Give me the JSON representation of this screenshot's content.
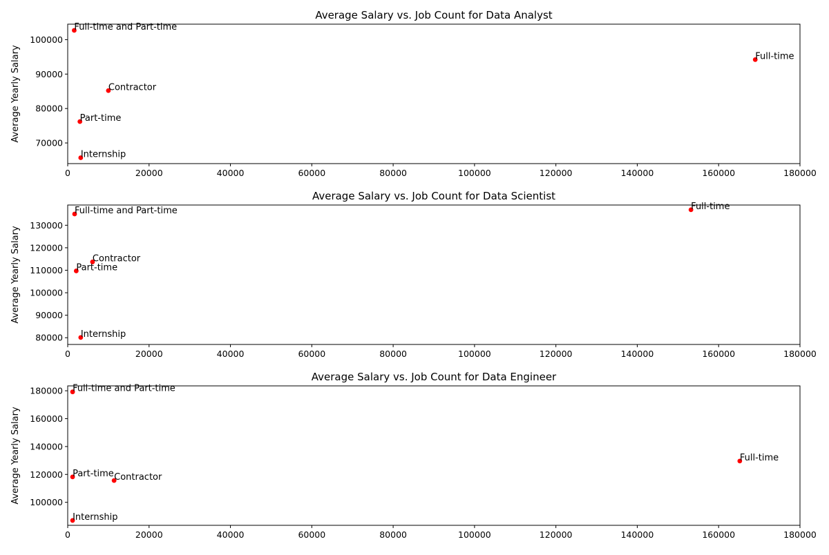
{
  "chart_data": [
    {
      "type": "scatter",
      "title": "Average Salary vs. Job Count for Data Analyst",
      "xlabel": "",
      "ylabel": "Average Yearly Salary",
      "xlim": [
        0,
        180000
      ],
      "ylim": [
        64000,
        104500
      ],
      "xticks": [
        0,
        20000,
        40000,
        60000,
        80000,
        100000,
        120000,
        140000,
        160000,
        180000
      ],
      "yticks": [
        70000,
        80000,
        90000,
        100000
      ],
      "grid": false,
      "marker_color": "#ff0000",
      "points": [
        {
          "label": "Full-time and Part-time",
          "x": 1600,
          "y": 102700
        },
        {
          "label": "Full-time",
          "x": 169000,
          "y": 94200
        },
        {
          "label": "Contractor",
          "x": 10000,
          "y": 85200
        },
        {
          "label": "Part-time",
          "x": 3000,
          "y": 76200
        },
        {
          "label": "Internship",
          "x": 3200,
          "y": 65700
        }
      ]
    },
    {
      "type": "scatter",
      "title": "Average Salary vs. Job Count for Data Scientist",
      "xlabel": "",
      "ylabel": "Average Yearly Salary",
      "xlim": [
        0,
        180000
      ],
      "ylim": [
        77000,
        139000
      ],
      "xticks": [
        0,
        20000,
        40000,
        60000,
        80000,
        100000,
        120000,
        140000,
        160000,
        180000
      ],
      "yticks": [
        80000,
        90000,
        100000,
        110000,
        120000,
        130000
      ],
      "grid": false,
      "marker_color": "#ff0000",
      "points": [
        {
          "label": "Full-time and Part-time",
          "x": 1700,
          "y": 135000
        },
        {
          "label": "Full-time",
          "x": 153200,
          "y": 136900
        },
        {
          "label": "Contractor",
          "x": 6100,
          "y": 113700
        },
        {
          "label": "Part-time",
          "x": 2100,
          "y": 109700
        },
        {
          "label": "Internship",
          "x": 3200,
          "y": 80100
        }
      ]
    },
    {
      "type": "scatter",
      "title": "Average Salary vs. Job Count for Data Engineer",
      "xlabel": "",
      "ylabel": "Average Yearly Salary",
      "xlim": [
        0,
        180000
      ],
      "ylim": [
        83500,
        183500
      ],
      "xticks": [
        0,
        20000,
        40000,
        60000,
        80000,
        100000,
        120000,
        140000,
        160000,
        180000
      ],
      "yticks": [
        100000,
        120000,
        140000,
        160000,
        180000
      ],
      "grid": false,
      "marker_color": "#ff0000",
      "points": [
        {
          "label": "Full-time and Part-time",
          "x": 1200,
          "y": 179200
        },
        {
          "label": "Full-time",
          "x": 165200,
          "y": 129600
        },
        {
          "label": "Part-time",
          "x": 1200,
          "y": 118200
        },
        {
          "label": "Contractor",
          "x": 11400,
          "y": 115600
        },
        {
          "label": "Internship",
          "x": 1200,
          "y": 87000
        }
      ]
    }
  ]
}
